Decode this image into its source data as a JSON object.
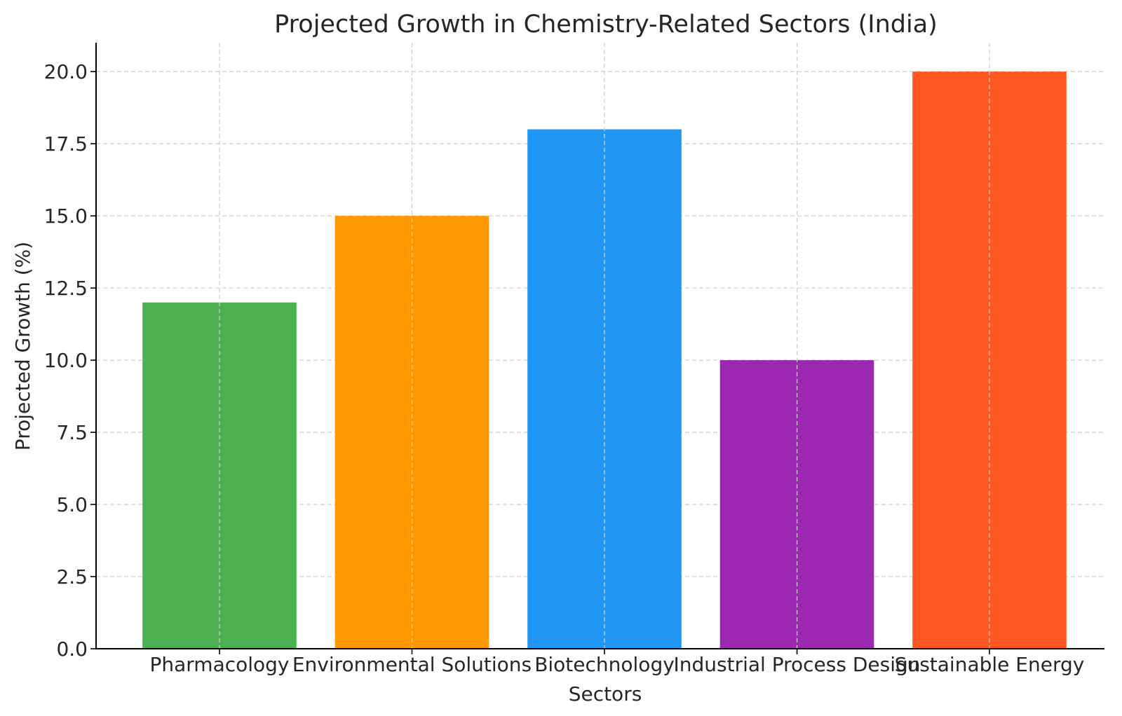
{
  "chart_data": {
    "type": "bar",
    "title": "Projected Growth in Chemistry-Related Sectors (India)",
    "xlabel": "Sectors",
    "ylabel": "Projected Growth (%)",
    "categories": [
      "Pharmacology",
      "Environmental Solutions",
      "Biotechnology",
      "Industrial Process Design",
      "Sustainable Energy"
    ],
    "values": [
      12,
      15,
      18,
      10,
      20
    ],
    "colors": [
      "#4caf50",
      "#ff9800",
      "#2196f3",
      "#9c27b0",
      "#ff5722"
    ],
    "ylim": [
      0,
      21
    ],
    "yticks": [
      0,
      2.5,
      5,
      7.5,
      10,
      12.5,
      15,
      17.5,
      20
    ],
    "ytick_labels": [
      "0.0",
      "2.5",
      "5.0",
      "7.5",
      "10.0",
      "12.5",
      "15.0",
      "17.5",
      "20.0"
    ],
    "grid": true,
    "legend": false
  }
}
